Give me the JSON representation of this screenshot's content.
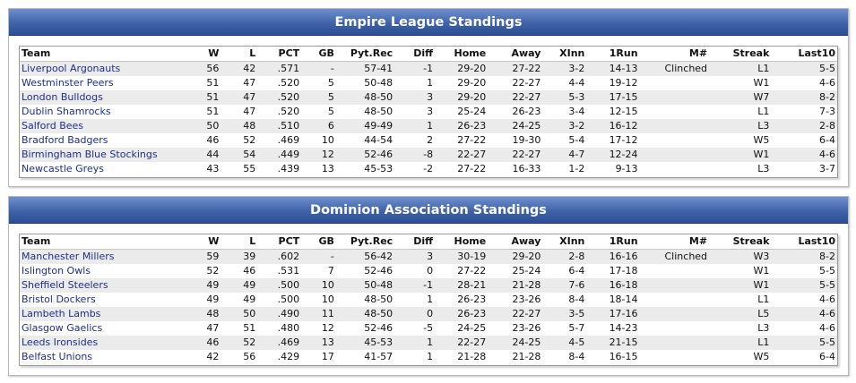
{
  "columns": [
    "Team",
    "W",
    "L",
    "PCT",
    "GB",
    "Pyt.Rec",
    "Diff",
    "Home",
    "Away",
    "XInn",
    "1Run",
    "M#",
    "Streak",
    "Last10"
  ],
  "leagues": [
    {
      "title": "Empire League Standings",
      "rows": [
        [
          "Liverpool Argonauts",
          "56",
          "42",
          ".571",
          "-",
          "57-41",
          "-1",
          "29-20",
          "27-22",
          "3-2",
          "14-13",
          "Clinched",
          "L1",
          "5-5"
        ],
        [
          "Westminster Peers",
          "51",
          "47",
          ".520",
          "5",
          "50-48",
          "1",
          "29-20",
          "22-27",
          "4-4",
          "19-12",
          "",
          "W1",
          "4-6"
        ],
        [
          "London Bulldogs",
          "51",
          "47",
          ".520",
          "5",
          "48-50",
          "3",
          "29-20",
          "22-27",
          "5-3",
          "17-15",
          "",
          "W7",
          "8-2"
        ],
        [
          "Dublin Shamrocks",
          "51",
          "47",
          ".520",
          "5",
          "48-50",
          "3",
          "25-24",
          "26-23",
          "3-4",
          "12-15",
          "",
          "L1",
          "7-3"
        ],
        [
          "Salford Bees",
          "50",
          "48",
          ".510",
          "6",
          "49-49",
          "1",
          "26-23",
          "24-25",
          "3-2",
          "16-12",
          "",
          "L3",
          "2-8"
        ],
        [
          "Bradford Badgers",
          "46",
          "52",
          ".469",
          "10",
          "44-54",
          "2",
          "27-22",
          "19-30",
          "5-4",
          "17-12",
          "",
          "W5",
          "6-4"
        ],
        [
          "Birmingham Blue Stockings",
          "44",
          "54",
          ".449",
          "12",
          "52-46",
          "-8",
          "22-27",
          "22-27",
          "4-7",
          "12-24",
          "",
          "W1",
          "4-6"
        ],
        [
          "Newcastle Greys",
          "43",
          "55",
          ".439",
          "13",
          "45-53",
          "-2",
          "27-22",
          "16-33",
          "1-2",
          "9-13",
          "",
          "L3",
          "3-7"
        ]
      ]
    },
    {
      "title": "Dominion Association Standings",
      "rows": [
        [
          "Manchester Millers",
          "59",
          "39",
          ".602",
          "-",
          "56-42",
          "3",
          "30-19",
          "29-20",
          "2-8",
          "16-16",
          "Clinched",
          "W3",
          "8-2"
        ],
        [
          "Islington Owls",
          "52",
          "46",
          ".531",
          "7",
          "52-46",
          "0",
          "27-22",
          "25-24",
          "6-4",
          "17-18",
          "",
          "W1",
          "5-5"
        ],
        [
          "Sheffield Steelers",
          "49",
          "49",
          ".500",
          "10",
          "50-48",
          "-1",
          "28-21",
          "21-28",
          "7-6",
          "16-18",
          "",
          "W1",
          "5-5"
        ],
        [
          "Bristol Dockers",
          "49",
          "49",
          ".500",
          "10",
          "48-50",
          "1",
          "26-23",
          "23-26",
          "8-4",
          "18-14",
          "",
          "L1",
          "4-6"
        ],
        [
          "Lambeth Lambs",
          "48",
          "50",
          ".490",
          "11",
          "48-50",
          "0",
          "26-23",
          "22-27",
          "3-5",
          "17-16",
          "",
          "L5",
          "4-6"
        ],
        [
          "Glasgow Gaelics",
          "47",
          "51",
          ".480",
          "12",
          "52-46",
          "-5",
          "24-25",
          "23-26",
          "5-7",
          "14-23",
          "",
          "L3",
          "4-6"
        ],
        [
          "Leeds Ironsides",
          "46",
          "52",
          ".469",
          "13",
          "45-53",
          "1",
          "22-27",
          "24-25",
          "4-5",
          "21-15",
          "",
          "L1",
          "5-5"
        ],
        [
          "Belfast Unions",
          "42",
          "56",
          ".429",
          "17",
          "41-57",
          "1",
          "21-28",
          "21-28",
          "8-4",
          "16-15",
          "",
          "W5",
          "6-4"
        ]
      ]
    }
  ]
}
